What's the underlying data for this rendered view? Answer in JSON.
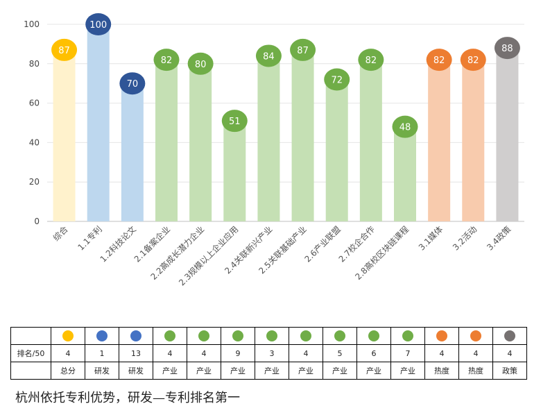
{
  "chart_data": {
    "type": "bar",
    "categories": [
      "综合",
      "1.1专利",
      "1.2科技论文",
      "2.1备案企业",
      "2.2高成长潜力企业",
      "2.3规模以上企业应用",
      "2.4关联新兴产业",
      "2.5关联基础产业",
      "2.6产业联盟",
      "2.7校企合作",
      "2.8高校区块链课程",
      "3.1媒体",
      "3.2活动",
      "3.4政策"
    ],
    "values": [
      87,
      100,
      70,
      82,
      80,
      51,
      84,
      87,
      72,
      82,
      48,
      82,
      82,
      88
    ],
    "bar_colors": [
      "#fff2cc",
      "#bdd7ee",
      "#bdd7ee",
      "#c5e0b4",
      "#c5e0b4",
      "#c5e0b4",
      "#c5e0b4",
      "#c5e0b4",
      "#c5e0b4",
      "#c5e0b4",
      "#c5e0b4",
      "#f8cbad",
      "#f8cbad",
      "#d0cece"
    ],
    "bubble_colors": [
      "#ffc000",
      "#2f5597",
      "#2f5597",
      "#70ad47",
      "#70ad47",
      "#70ad47",
      "#70ad47",
      "#70ad47",
      "#70ad47",
      "#70ad47",
      "#70ad47",
      "#ed7d31",
      "#ed7d31",
      "#767171"
    ],
    "ylim": [
      0,
      100
    ],
    "yticks": [
      0,
      20,
      40,
      60,
      80,
      100
    ],
    "grid": true,
    "data_labels": true,
    "legend": "none"
  },
  "table": {
    "row_header": "排名/50",
    "dot_colors": [
      "#ffc000",
      "#4472c4",
      "#4472c4",
      "#70ad47",
      "#70ad47",
      "#70ad47",
      "#70ad47",
      "#70ad47",
      "#70ad47",
      "#70ad47",
      "#70ad47",
      "#ed7d31",
      "#ed7d31",
      "#767171"
    ],
    "ranks": [
      "4",
      "1",
      "13",
      "4",
      "4",
      "9",
      "3",
      "4",
      "5",
      "6",
      "7",
      "4",
      "4",
      "4"
    ],
    "groups": [
      "总分",
      "研发",
      "研发",
      "产业",
      "产业",
      "产业",
      "产业",
      "产业",
      "产业",
      "产业",
      "产业",
      "热度",
      "热度",
      "政策"
    ]
  },
  "caption": "杭州依托专利优势，研发—专利排名第一"
}
